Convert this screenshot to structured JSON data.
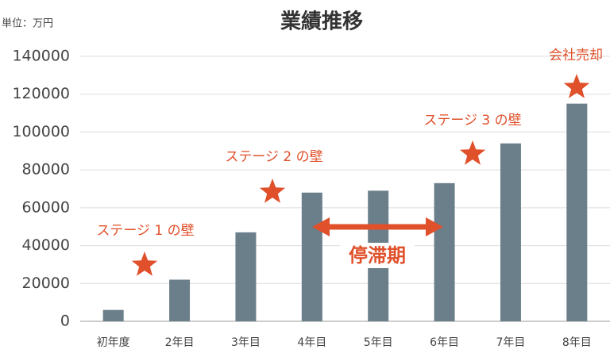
{
  "chart_data": {
    "type": "bar",
    "title": "業績推移",
    "unit_label": "単位：万円",
    "categories": [
      "初年度",
      "2年目",
      "3年目",
      "4年目",
      "5年目",
      "6年目",
      "7年目",
      "8年目"
    ],
    "values": [
      6000,
      22000,
      47000,
      68000,
      69000,
      73000,
      94000,
      115000
    ],
    "color": "#6b7f8a",
    "ylim": [
      0,
      140000
    ],
    "yticks": [
      0,
      20000,
      40000,
      60000,
      80000,
      100000,
      120000,
      140000
    ],
    "grid": true,
    "annotations": [
      "ステージ 1 の壁",
      "ステージ 2 の壁",
      "ステージ 3 の壁",
      "会社売却",
      "停滞期"
    ]
  }
}
